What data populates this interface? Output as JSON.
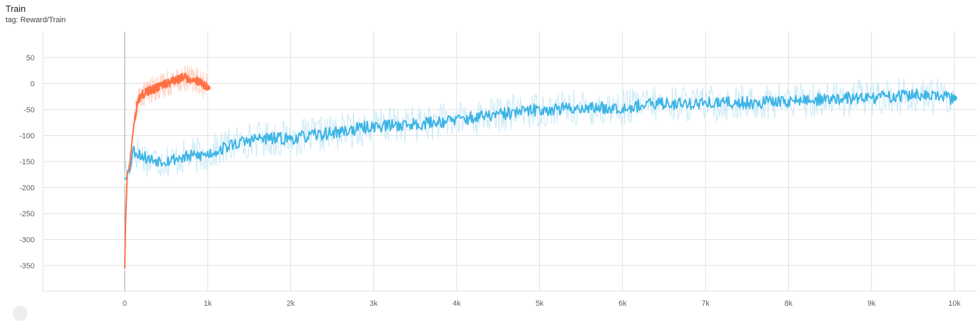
{
  "card": {
    "title": "Train",
    "tag": "tag: Reward/Train"
  },
  "chart_data": {
    "type": "line",
    "title": "Train",
    "subtitle": "tag: Reward/Train",
    "xlabel": "",
    "ylabel": "",
    "xlim": [
      0,
      10000
    ],
    "ylim": [
      -390,
      100
    ],
    "x_ticks": [
      {
        "value": 0,
        "label": "0"
      },
      {
        "value": 1000,
        "label": "1k"
      },
      {
        "value": 2000,
        "label": "2k"
      },
      {
        "value": 3000,
        "label": "3k"
      },
      {
        "value": 4000,
        "label": "4k"
      },
      {
        "value": 5000,
        "label": "5k"
      },
      {
        "value": 6000,
        "label": "6k"
      },
      {
        "value": 7000,
        "label": "7k"
      },
      {
        "value": 8000,
        "label": "8k"
      },
      {
        "value": 9000,
        "label": "9k"
      },
      {
        "value": 10000,
        "label": "10k"
      }
    ],
    "y_ticks": [
      {
        "value": 50,
        "label": "50"
      },
      {
        "value": 0,
        "label": "0"
      },
      {
        "value": -50,
        "label": "-50"
      },
      {
        "value": -100,
        "label": "-100"
      },
      {
        "value": -150,
        "label": "-150"
      },
      {
        "value": -200,
        "label": "-200"
      },
      {
        "value": -250,
        "label": "-250"
      },
      {
        "value": -300,
        "label": "-300"
      },
      {
        "value": -350,
        "label": "-350"
      }
    ],
    "grid": true,
    "legend": "none",
    "series": [
      {
        "color": "#3db4e6",
        "raw_color": "#cdebf7",
        "x": [
          0,
          50,
          100,
          200,
          300,
          500,
          700,
          1000,
          1300,
          1600,
          2000,
          2500,
          3000,
          3500,
          4000,
          4500,
          5000,
          5500,
          6000,
          6500,
          7000,
          7500,
          8000,
          8500,
          9000,
          9500,
          10000
        ],
        "values": [
          -175,
          -170,
          -128,
          -138,
          -146,
          -148,
          -142,
          -136,
          -117,
          -106,
          -106,
          -95,
          -82,
          -78,
          -70,
          -60,
          -50,
          -47,
          -46,
          -38,
          -38,
          -37,
          -34,
          -30,
          -27,
          -22,
          -28
        ],
        "raw_spread": 22
      },
      {
        "color": "#ff7043",
        "raw_color": "#ffd5c8",
        "x": [
          0,
          10,
          30,
          60,
          100,
          150,
          200,
          300,
          400,
          500,
          600,
          700,
          800,
          900,
          1000
        ],
        "values": [
          -355,
          -265,
          -175,
          -155,
          -90,
          -40,
          -22,
          -13,
          -8,
          0,
          5,
          12,
          8,
          3,
          -8
        ],
        "raw_spread": 16
      }
    ]
  }
}
